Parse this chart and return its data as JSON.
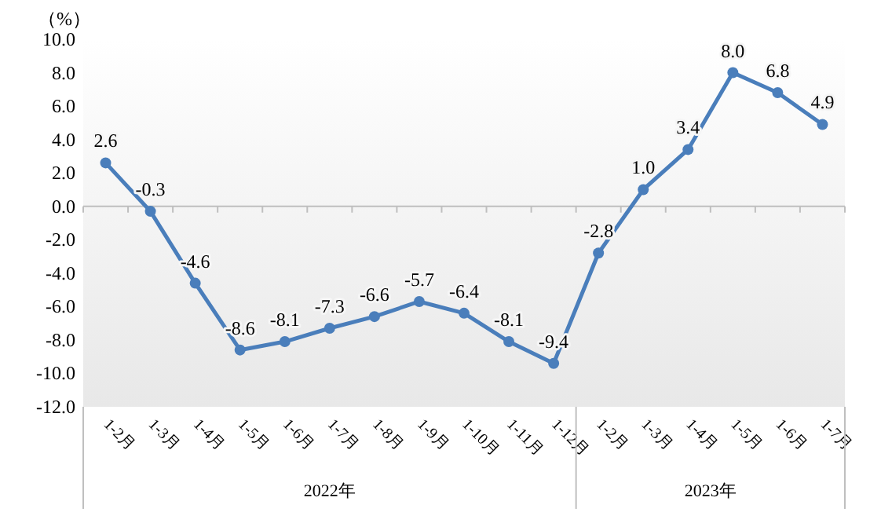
{
  "chart_data": {
    "type": "line",
    "ylabel": "（%）",
    "categories": [
      "1-2月",
      "1-3月",
      "1-4月",
      "1-5月",
      "1-6月",
      "1-7月",
      "1-8月",
      "1-9月",
      "1-10月",
      "1-11月",
      "1-12月",
      "1-2月",
      "1-3月",
      "1-4月",
      "1-5月",
      "1-6月",
      "1-7月"
    ],
    "series": [
      {
        "color": "#4a7ebb",
        "values": [
          2.6,
          -0.3,
          -4.6,
          -8.6,
          -8.1,
          -7.3,
          -6.6,
          -5.7,
          -6.4,
          -8.1,
          -9.4,
          -2.8,
          1.0,
          3.4,
          8.0,
          6.8,
          4.9
        ],
        "value_labels": [
          "2.6",
          "-0.3",
          "-4.6",
          "-8.6",
          "-8.1",
          "-7.3",
          "-6.6",
          "-5.7",
          "-6.4",
          "-8.1",
          "-9.4",
          "-2.8",
          "1.0",
          "3.4",
          "8.0",
          "6.8",
          "4.9"
        ]
      }
    ],
    "ylim": [
      -12,
      10
    ],
    "yticks": [
      {
        "value": 10,
        "label": "10.0"
      },
      {
        "value": 8,
        "label": "8.0"
      },
      {
        "value": 6,
        "label": "6.0"
      },
      {
        "value": 4,
        "label": "4.0"
      },
      {
        "value": 2,
        "label": "2.0"
      },
      {
        "value": 0,
        "label": "0.0"
      },
      {
        "value": -2,
        "label": "-2.0"
      },
      {
        "value": -4,
        "label": "-4.0"
      },
      {
        "value": -6,
        "label": "-6.0"
      },
      {
        "value": -8,
        "label": "-8.0"
      },
      {
        "value": -10,
        "label": "-10.0"
      },
      {
        "value": -12,
        "label": "-12.0"
      }
    ],
    "annotations": [
      "2022年",
      "2023年"
    ],
    "marker": "circle",
    "line_style": "solid"
  }
}
